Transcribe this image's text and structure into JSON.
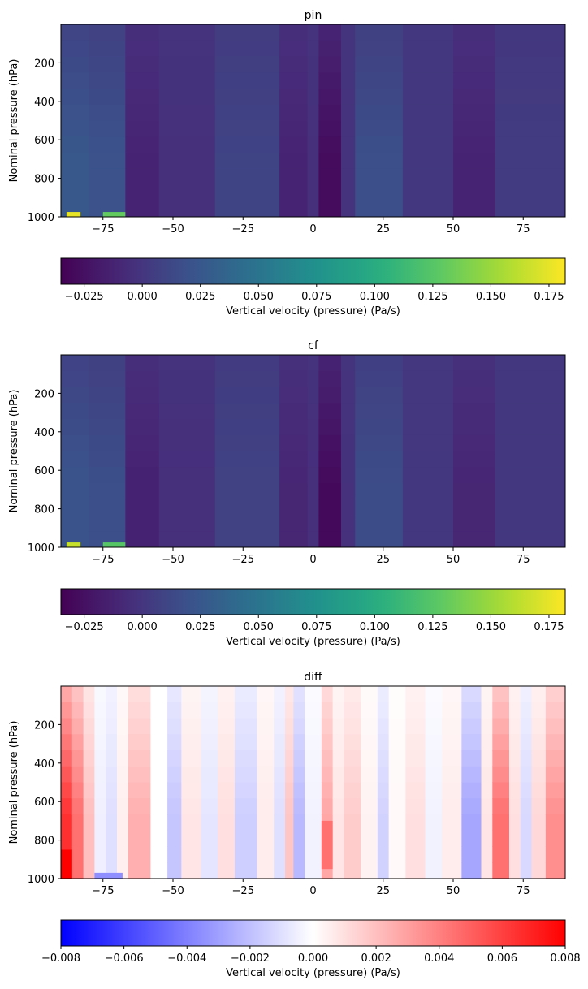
{
  "chart_data": [
    {
      "type": "heatmap",
      "title": "pin",
      "xlabel": "",
      "ylabel": "Nominal pressure (hPa)",
      "xlim": [
        -90,
        90
      ],
      "ylim": [
        1000,
        0
      ],
      "xticks": [
        -75,
        -50,
        -25,
        0,
        25,
        50,
        75
      ],
      "yticks": [
        200,
        400,
        600,
        800,
        1000
      ],
      "colormap": "viridis",
      "colorbar": {
        "label": "Vertical velocity (pressure) (Pa/s)",
        "min": -0.035,
        "max": 0.182,
        "ticks": [
          -0.025,
          0.0,
          0.025,
          0.05,
          0.075,
          0.1,
          0.125,
          0.15,
          0.175
        ],
        "tick_labels": [
          "−0.025",
          "0.000",
          "0.025",
          "0.050",
          "0.075",
          "0.100",
          "0.125",
          "0.150",
          "0.175"
        ]
      },
      "lat_bands": [
        {
          "lat": [
            -90,
            -80
          ],
          "value": 0.025
        },
        {
          "lat": [
            -80,
            -67
          ],
          "value": 0.02
        },
        {
          "lat": [
            -67,
            -55
          ],
          "value": -0.012
        },
        {
          "lat": [
            -55,
            -35
          ],
          "value": -0.004
        },
        {
          "lat": [
            -35,
            -12
          ],
          "value": 0.01
        },
        {
          "lat": [
            -12,
            -2
          ],
          "value": -0.012
        },
        {
          "lat": [
            -2,
            2
          ],
          "value": -0.004
        },
        {
          "lat": [
            2,
            10
          ],
          "value": -0.028
        },
        {
          "lat": [
            10,
            15
          ],
          "value": -0.002
        },
        {
          "lat": [
            15,
            32
          ],
          "value": 0.018
        },
        {
          "lat": [
            32,
            50
          ],
          "value": 0.002
        },
        {
          "lat": [
            50,
            65
          ],
          "value": -0.012
        },
        {
          "lat": [
            65,
            90
          ],
          "value": 0.004
        }
      ],
      "hot_spots": [
        {
          "lat": [
            -88,
            -83
          ],
          "p": [
            975,
            1000
          ],
          "value": 0.175
        },
        {
          "lat": [
            -75,
            -67
          ],
          "p": [
            975,
            1000
          ],
          "value": 0.13
        }
      ]
    },
    {
      "type": "heatmap",
      "title": "cf",
      "xlabel": "",
      "ylabel": "Nominal pressure (hPa)",
      "xlim": [
        -90,
        90
      ],
      "ylim": [
        1000,
        0
      ],
      "xticks": [
        -75,
        -50,
        -25,
        0,
        25,
        50,
        75
      ],
      "yticks": [
        200,
        400,
        600,
        800,
        1000
      ],
      "colormap": "viridis",
      "colorbar": {
        "label": "Vertical velocity (pressure) (Pa/s)",
        "min": -0.035,
        "max": 0.182,
        "ticks": [
          -0.025,
          0.0,
          0.025,
          0.05,
          0.075,
          0.1,
          0.125,
          0.15,
          0.175
        ],
        "tick_labels": [
          "−0.025",
          "0.000",
          "0.025",
          "0.050",
          "0.075",
          "0.100",
          "0.125",
          "0.150",
          "0.175"
        ]
      },
      "lat_bands": [
        {
          "lat": [
            -90,
            -80
          ],
          "value": 0.022
        },
        {
          "lat": [
            -80,
            -67
          ],
          "value": 0.018
        },
        {
          "lat": [
            -67,
            -55
          ],
          "value": -0.013
        },
        {
          "lat": [
            -55,
            -35
          ],
          "value": -0.005
        },
        {
          "lat": [
            -35,
            -12
          ],
          "value": 0.009
        },
        {
          "lat": [
            -12,
            -2
          ],
          "value": -0.011
        },
        {
          "lat": [
            -2,
            2
          ],
          "value": -0.005
        },
        {
          "lat": [
            2,
            10
          ],
          "value": -0.03
        },
        {
          "lat": [
            10,
            15
          ],
          "value": -0.003
        },
        {
          "lat": [
            15,
            32
          ],
          "value": 0.016
        },
        {
          "lat": [
            32,
            50
          ],
          "value": 0.001
        },
        {
          "lat": [
            50,
            65
          ],
          "value": -0.011
        },
        {
          "lat": [
            65,
            90
          ],
          "value": 0.002
        }
      ],
      "hot_spots": [
        {
          "lat": [
            -88,
            -83
          ],
          "p": [
            975,
            1000
          ],
          "value": 0.165
        },
        {
          "lat": [
            -75,
            -67
          ],
          "p": [
            975,
            1000
          ],
          "value": 0.125
        }
      ]
    },
    {
      "type": "heatmap",
      "title": "diff",
      "xlabel": "",
      "ylabel": "Nominal pressure (hPa)",
      "xlim": [
        -90,
        90
      ],
      "ylim": [
        1000,
        0
      ],
      "xticks": [
        -75,
        -50,
        -25,
        0,
        25,
        50,
        75
      ],
      "yticks": [
        200,
        400,
        600,
        800,
        1000
      ],
      "colormap": "bwr",
      "colorbar": {
        "label": "Vertical velocity (pressure) (Pa/s)",
        "min": -0.008,
        "max": 0.008,
        "ticks": [
          -0.008,
          -0.006,
          -0.004,
          -0.002,
          0.0,
          0.002,
          0.004,
          0.006,
          0.008
        ],
        "tick_labels": [
          "−0.008",
          "−0.006",
          "−0.004",
          "−0.002",
          "0.000",
          "0.002",
          "0.004",
          "0.006",
          "0.008"
        ]
      },
      "lat_bands": [
        {
          "lat": [
            -90,
            -86
          ],
          "value": 0.0065
        },
        {
          "lat": [
            -86,
            -82
          ],
          "value": 0.0045
        },
        {
          "lat": [
            -82,
            -78
          ],
          "value": 0.002
        },
        {
          "lat": [
            -78,
            -74
          ],
          "value": -0.0005
        },
        {
          "lat": [
            -74,
            -70
          ],
          "value": -0.001
        },
        {
          "lat": [
            -70,
            -66
          ],
          "value": 0.0005
        },
        {
          "lat": [
            -66,
            -58
          ],
          "value": 0.0025
        },
        {
          "lat": [
            -58,
            -52
          ],
          "value": 0.0
        },
        {
          "lat": [
            -52,
            -47
          ],
          "value": -0.0018
        },
        {
          "lat": [
            -47,
            -40
          ],
          "value": 0.0008
        },
        {
          "lat": [
            -40,
            -34
          ],
          "value": -0.0008
        },
        {
          "lat": [
            -34,
            -28
          ],
          "value": 0.001
        },
        {
          "lat": [
            -28,
            -20
          ],
          "value": -0.0015
        },
        {
          "lat": [
            -20,
            -14
          ],
          "value": 0.0006
        },
        {
          "lat": [
            -14,
            -10
          ],
          "value": -0.001
        },
        {
          "lat": [
            -10,
            -7
          ],
          "value": 0.0018
        },
        {
          "lat": [
            -7,
            -3
          ],
          "value": -0.0022
        },
        {
          "lat": [
            -3,
            3
          ],
          "value": -0.0004
        },
        {
          "lat": [
            3,
            7
          ],
          "value": 0.0028
        },
        {
          "lat": [
            7,
            11
          ],
          "value": 0.0008
        },
        {
          "lat": [
            11,
            17
          ],
          "value": 0.0016
        },
        {
          "lat": [
            17,
            23
          ],
          "value": 0.0004
        },
        {
          "lat": [
            23,
            27
          ],
          "value": -0.0014
        },
        {
          "lat": [
            27,
            33
          ],
          "value": 0.0002
        },
        {
          "lat": [
            33,
            40
          ],
          "value": 0.001
        },
        {
          "lat": [
            40,
            46
          ],
          "value": -0.0004
        },
        {
          "lat": [
            46,
            53
          ],
          "value": 0.0006
        },
        {
          "lat": [
            53,
            60
          ],
          "value": -0.0028
        },
        {
          "lat": [
            60,
            64
          ],
          "value": 0.0008
        },
        {
          "lat": [
            64,
            70
          ],
          "value": 0.0045
        },
        {
          "lat": [
            70,
            74
          ],
          "value": 0.001
        },
        {
          "lat": [
            74,
            78
          ],
          "value": -0.0012
        },
        {
          "lat": [
            78,
            83
          ],
          "value": 0.0012
        },
        {
          "lat": [
            83,
            90
          ],
          "value": 0.0035
        }
      ],
      "hot_spots": [
        {
          "lat": [
            -90,
            -86
          ],
          "p": [
            850,
            1000
          ],
          "value": 0.008
        },
        {
          "lat": [
            -78,
            -68
          ],
          "p": [
            970,
            1000
          ],
          "value": -0.0035
        },
        {
          "lat": [
            3,
            7
          ],
          "p": [
            700,
            950
          ],
          "value": 0.0045
        }
      ]
    }
  ]
}
